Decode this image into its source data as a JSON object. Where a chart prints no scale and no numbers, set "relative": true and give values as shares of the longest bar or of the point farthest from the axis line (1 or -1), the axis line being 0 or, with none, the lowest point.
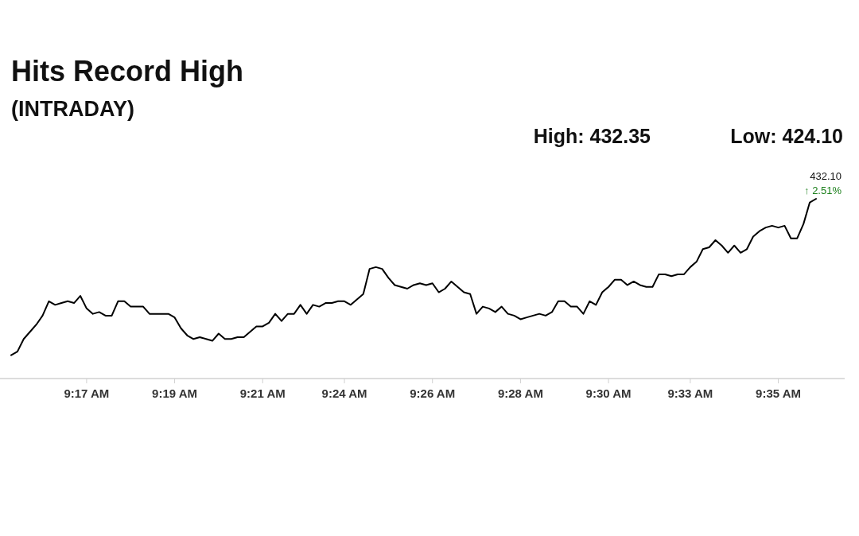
{
  "chart_data": {
    "type": "line",
    "title": "Hits Record High",
    "subtitle": "(INTRADAY)",
    "relative": true,
    "categories": [
      null,
      null,
      null,
      null,
      null,
      null,
      null,
      null,
      null,
      null,
      null,
      null,
      "9:17 AM",
      null,
      null,
      null,
      null,
      null,
      null,
      null,
      null,
      null,
      null,
      null,
      null,
      null,
      "9:19 AM",
      null,
      null,
      null,
      null,
      null,
      null,
      null,
      null,
      null,
      null,
      null,
      null,
      null,
      "9:21 AM",
      null,
      null,
      null,
      null,
      null,
      null,
      null,
      null,
      null,
      null,
      null,
      null,
      "9:24 AM",
      null,
      null,
      null,
      null,
      null,
      null,
      null,
      null,
      null,
      null,
      null,
      null,
      null,
      "9:26 AM",
      null,
      null,
      null,
      null,
      null,
      null,
      null,
      null,
      null,
      null,
      null,
      null,
      null,
      "9:28 AM",
      null,
      null,
      null,
      null,
      null,
      null,
      null,
      null,
      null,
      null,
      null,
      null,
      null,
      "9:30 AM",
      null,
      null,
      null,
      null,
      null,
      null,
      null,
      null,
      null,
      null,
      null,
      null,
      "9:33 AM",
      null,
      null,
      null,
      null,
      null,
      null,
      null,
      null,
      null,
      null,
      null,
      null,
      null,
      "9:35 AM",
      null,
      null,
      null,
      null,
      null,
      null
    ],
    "series": [
      {
        "color": "#000000",
        "values": [
          0.13,
          0.15,
          0.22,
          0.26,
          0.3,
          0.35,
          0.43,
          0.41,
          0.42,
          0.43,
          0.42,
          0.46,
          0.39,
          0.36,
          0.37,
          0.35,
          0.35,
          0.43,
          0.43,
          0.4,
          0.4,
          0.4,
          0.36,
          0.36,
          0.36,
          0.36,
          0.34,
          0.28,
          0.24,
          0.22,
          0.23,
          0.22,
          0.21,
          0.25,
          0.22,
          0.22,
          0.23,
          0.23,
          0.26,
          0.29,
          0.29,
          0.31,
          0.36,
          0.32,
          0.36,
          0.36,
          0.41,
          0.36,
          0.41,
          0.4,
          0.42,
          0.42,
          0.43,
          0.43,
          0.41,
          0.44,
          0.47,
          0.61,
          0.62,
          0.61,
          0.56,
          0.52,
          0.51,
          0.5,
          0.52,
          0.53,
          0.52,
          0.53,
          0.48,
          0.5,
          0.54,
          0.51,
          0.48,
          0.47,
          0.36,
          0.4,
          0.39,
          0.37,
          0.4,
          0.36,
          0.35,
          0.33,
          0.34,
          0.35,
          0.36,
          0.35,
          0.37,
          0.43,
          0.43,
          0.4,
          0.4,
          0.36,
          0.43,
          0.41,
          0.48,
          0.51,
          0.55,
          0.55,
          0.52,
          0.54,
          0.52,
          0.51,
          0.51,
          0.58,
          0.58,
          0.57,
          0.58,
          0.58,
          0.62,
          0.65,
          0.72,
          0.73,
          0.77,
          0.74,
          0.7,
          0.74,
          0.7,
          0.72,
          0.79,
          0.82,
          0.84,
          0.85,
          0.84,
          0.85,
          0.78,
          0.78,
          0.86,
          0.98,
          1
        ]
      }
    ],
    "annotations": [
      "High: 432.35",
      "Low: 424.10",
      "432.10",
      "↑ 2.51%"
    ]
  }
}
